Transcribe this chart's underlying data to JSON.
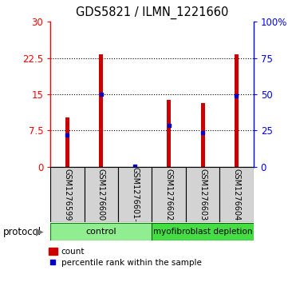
{
  "title": "GDS5821 / ILMN_1221660",
  "samples": [
    "GSM1276599",
    "GSM1276600",
    "GSM1276601-",
    "GSM1276602",
    "GSM1276603",
    "GSM1276604"
  ],
  "count_values": [
    10.2,
    23.3,
    0.4,
    13.8,
    13.2,
    23.2
  ],
  "percentile_values": [
    6.5,
    15.0,
    0.1,
    8.5,
    7.0,
    14.7
  ],
  "ylim_left": [
    0,
    30
  ],
  "yticks_left": [
    0,
    7.5,
    15,
    22.5,
    30
  ],
  "ytick_labels_left": [
    "0",
    "7.5",
    "15",
    "22.5",
    "30"
  ],
  "yticks_right": [
    0,
    7.5,
    15,
    22.5,
    30
  ],
  "ytick_labels_right": [
    "0",
    "25",
    "50",
    "75",
    "100%"
  ],
  "bar_color": "#cc0000",
  "marker_color": "#0000cc",
  "control_color": "#90ee90",
  "depletion_color": "#44dd44",
  "sample_box_color": "#d3d3d3",
  "legend_count_label": "count",
  "legend_percentile_label": "percentile rank within the sample",
  "protocol_text": "protocol",
  "bar_width": 0.12
}
